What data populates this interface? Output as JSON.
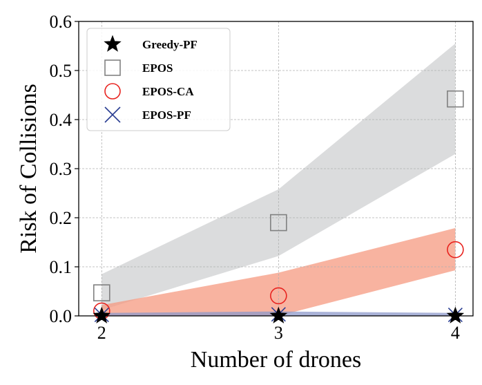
{
  "chart_data": {
    "type": "scatter",
    "title": "",
    "xlabel": "Number of drones",
    "ylabel": "Risk of Collisions",
    "x": [
      2,
      3,
      4
    ],
    "x_ticks": [
      "2",
      "3",
      "4"
    ],
    "y_ticks": [
      "0.0",
      "0.1",
      "0.2",
      "0.3",
      "0.4",
      "0.5",
      "0.6"
    ],
    "xlim": [
      1.87,
      4.1
    ],
    "ylim": [
      0.0,
      0.6
    ],
    "grid": true,
    "legend_position": "top-left",
    "series": [
      {
        "name": "Greedy-PF",
        "marker": "star",
        "color": "#000000",
        "values": [
          0.0,
          0.0,
          0.0
        ],
        "band_lower": [
          0.0,
          0.0,
          0.0
        ],
        "band_upper": [
          0.0,
          0.0,
          0.0
        ],
        "band_color": "#cccccc"
      },
      {
        "name": "EPOS",
        "marker": "square",
        "color": "#808080",
        "values": [
          0.047,
          0.19,
          0.442
        ],
        "band_lower": [
          0.012,
          0.122,
          0.33
        ],
        "band_upper": [
          0.085,
          0.258,
          0.555
        ],
        "band_color": "#cfd0d2"
      },
      {
        "name": "EPOS-CA",
        "marker": "circle",
        "color": "#e8231f",
        "values": [
          0.01,
          0.041,
          0.135
        ],
        "band_lower": [
          0.0,
          0.0,
          0.093
        ],
        "band_upper": [
          0.022,
          0.088,
          0.179
        ],
        "band_color": "#f59a80"
      },
      {
        "name": "EPOS-PF",
        "marker": "x",
        "color": "#2a3e92",
        "values": [
          0.002,
          0.003,
          0.002
        ],
        "band_lower": [
          0.0,
          0.0,
          0.0
        ],
        "band_upper": [
          0.006,
          0.009,
          0.006
        ],
        "band_color": "#8e9acb"
      }
    ]
  }
}
